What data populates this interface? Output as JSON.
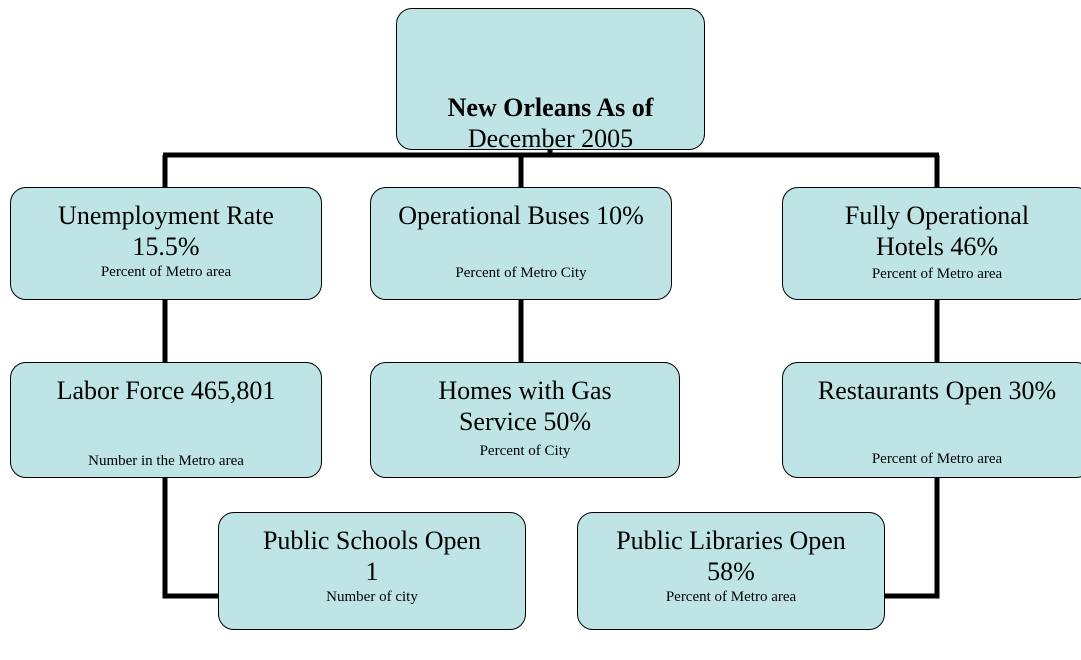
{
  "nodes": [
    {
      "label": [
        "New Orleans As of"
      ],
      "sublabel": "December 2005"
    },
    {
      "label": [
        "Unemployment Rate",
        "15.5%"
      ],
      "sublabel": "Percent of Metro area"
    },
    {
      "label": [
        "Operational Buses 10%"
      ],
      "sublabel": "Percent of Metro City"
    },
    {
      "label": [
        "Fully Operational",
        "Hotels 46%"
      ],
      "sublabel": "Percent of Metro area"
    },
    {
      "label": [
        "Labor Force 465,801"
      ],
      "sublabel": "Number in the Metro area"
    },
    {
      "label": [
        "Homes with Gas",
        "Service 50%"
      ],
      "sublabel": "Percent of City"
    },
    {
      "label": [
        "Restaurants Open 30%"
      ],
      "sublabel": "Percent of Metro area"
    },
    {
      "label": [
        "Public Schools Open",
        "1"
      ],
      "sublabel": "Number of city"
    },
    {
      "label": [
        "Public Libraries Open",
        "58%"
      ],
      "sublabel": "Percent of Metro area"
    }
  ]
}
